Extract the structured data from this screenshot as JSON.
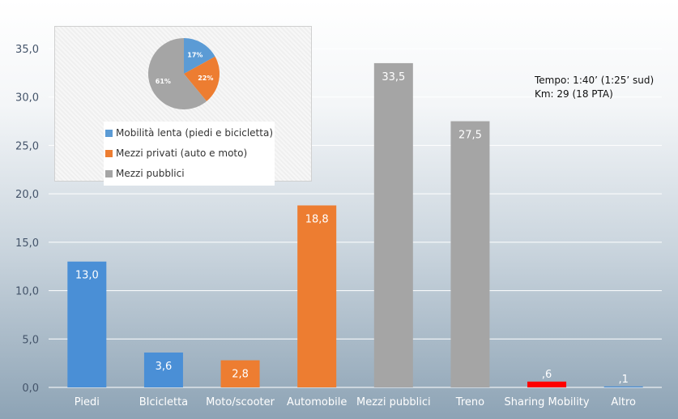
{
  "chart_data": {
    "type": "bar",
    "categories": [
      "Piedi",
      "BIcicletta",
      "Moto/scooter",
      "Automobile",
      "Mezzi pubblici",
      "Treno",
      "Sharing Mobility",
      "Altro"
    ],
    "values": [
      13.0,
      3.6,
      2.8,
      18.8,
      33.5,
      27.5,
      0.6,
      0.1
    ],
    "value_labels": [
      "13,0",
      "3,6",
      "2,8",
      "18,8",
      "33,5",
      "27,5",
      ",6",
      ",1"
    ],
    "colors": [
      "#4a8fd6",
      "#4a8fd6",
      "#ed7d31",
      "#ed7d31",
      "#a5a5a5",
      "#a5a5a5",
      "#ff0000",
      "#4a8fd6"
    ],
    "ylim": [
      0,
      35
    ],
    "yticks": [
      0,
      5,
      10,
      15,
      20,
      25,
      30,
      35
    ],
    "ytick_labels": [
      "0,0",
      "5,0",
      "10,0",
      "15,0",
      "20,0",
      "25,0",
      "30,0",
      "35,0"
    ],
    "grid": true,
    "annotation": [
      "Tempo: 1:40’ (1:25’ sud)",
      "Km: 29 (18 PTA)"
    ],
    "inset_pie": {
      "type": "pie",
      "labels": [
        "Mobilità lenta (piedi e bicicletta)",
        "Mezzi privati (auto e moto)",
        "Mezzi pubblici"
      ],
      "values": [
        17,
        22,
        61
      ],
      "value_labels": [
        "17%",
        "22%",
        "61%"
      ],
      "colors": [
        "#5b9bd5",
        "#ed7d31",
        "#a5a5a5"
      ],
      "legend": "bottom"
    }
  }
}
